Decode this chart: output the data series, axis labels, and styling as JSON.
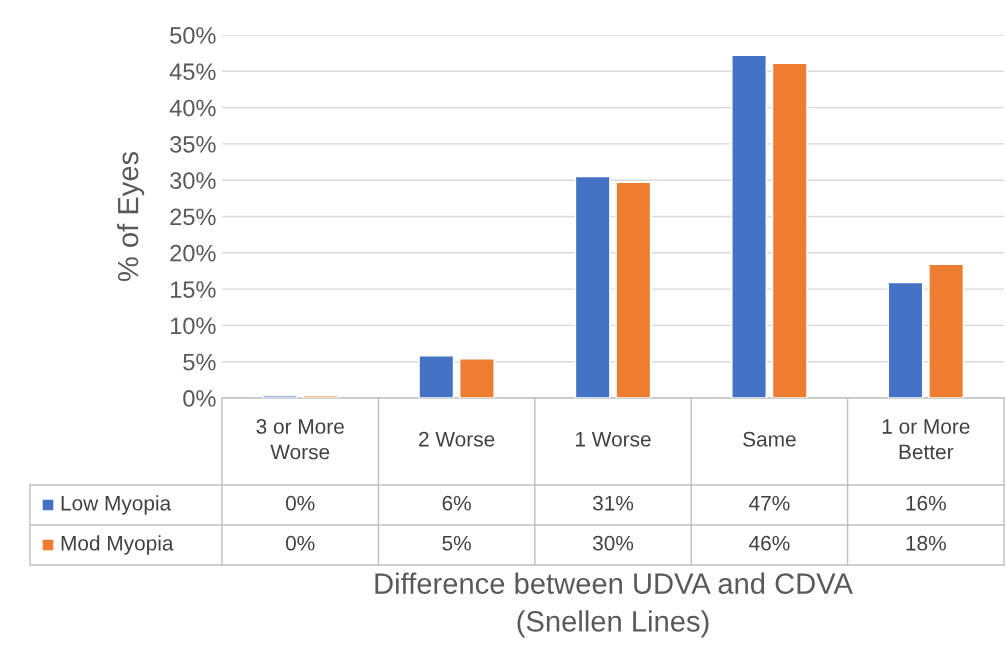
{
  "chart_data": {
    "type": "bar",
    "xlabel": "Difference between UDVA and CDVA (Snellen Lines)",
    "ylabel": "% of Eyes",
    "categories": [
      "3 or More Worse",
      "2 Worse",
      "1 Worse",
      "Same",
      "1 or More Better"
    ],
    "series": [
      {
        "name": "Low Myopia",
        "color": "#4472c4",
        "values": [
          0.3,
          5.8,
          30.5,
          47.2,
          15.9
        ],
        "value_labels": [
          "0%",
          "6%",
          "31%",
          "47%",
          "16%"
        ]
      },
      {
        "name": "Mod Myopia",
        "color": "#ed7d31",
        "values": [
          0.3,
          5.4,
          29.7,
          46.1,
          18.4
        ],
        "value_labels": [
          "0%",
          "5%",
          "30%",
          "46%",
          "18%"
        ]
      }
    ],
    "ylim": [
      0,
      50
    ],
    "yticks": [
      {
        "value": 0,
        "label": "0%"
      },
      {
        "value": 5,
        "label": "5%"
      },
      {
        "value": 10,
        "label": "10%"
      },
      {
        "value": 15,
        "label": "15%"
      },
      {
        "value": 20,
        "label": "20%"
      },
      {
        "value": 25,
        "label": "25%"
      },
      {
        "value": 30,
        "label": "30%"
      },
      {
        "value": 35,
        "label": "35%"
      },
      {
        "value": 40,
        "label": "40%"
      },
      {
        "value": 45,
        "label": "45%"
      },
      {
        "value": 50,
        "label": "50%"
      }
    ],
    "grid": "y",
    "legend": "bottom left"
  }
}
